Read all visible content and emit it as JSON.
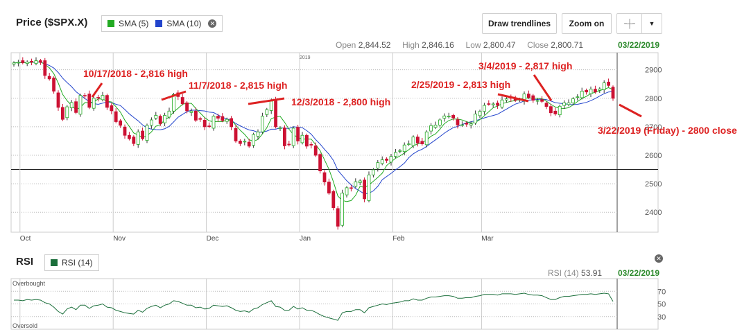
{
  "price_panel": {
    "title": "Price ($SPX.X)",
    "legend": [
      {
        "label": "SMA (5)",
        "color": "#22aa22"
      },
      {
        "label": "SMA (10)",
        "color": "#2244cc"
      }
    ],
    "buttons": {
      "draw_trendlines": "Draw trendlines",
      "zoom_on": "Zoom on"
    },
    "ohlc": {
      "open_label": "Open",
      "open": "2,844.52",
      "high_label": "High",
      "high": "2,846.16",
      "low_label": "Low",
      "low": "2,800.47",
      "close_label": "Close",
      "close": "2,800.71"
    },
    "date": "03/22/2019",
    "year_marker": "2019"
  },
  "rsi_panel": {
    "title": "RSI",
    "legend_label": "RSI (14)",
    "legend_color": "#1a6e3a",
    "value_label": "RSI (14)",
    "value": "53.91",
    "date": "03/22/2019",
    "overbought": "Overbought",
    "oversold": "Oversold"
  },
  "colors": {
    "up": "#22aa22",
    "down": "#cc1133",
    "sma5": "#22aa22",
    "sma10": "#2244cc",
    "annotation": "#dd2222",
    "rsi": "#1a6e3a"
  },
  "chart_data": [
    {
      "type": "candlestick",
      "title": "Price ($SPX.X)",
      "x_labels": [
        "Oct",
        "Nov",
        "Dec",
        "Jan",
        "Feb",
        "Mar"
      ],
      "y_ticks": [
        2400,
        2500,
        2600,
        2700,
        2800,
        2900
      ],
      "ylim": [
        2330,
        2960
      ],
      "reference_line": 2550,
      "series": [
        {
          "name": "SMA (5)"
        },
        {
          "name": "SMA (10)"
        }
      ],
      "closes": [
        2924,
        2926,
        2925,
        2927,
        2928,
        2932,
        2926,
        2880,
        2868,
        2825,
        2768,
        2726,
        2770,
        2785,
        2750,
        2810,
        2809,
        2768,
        2800,
        2801,
        2810,
        2768,
        2756,
        2718,
        2705,
        2670,
        2658,
        2641,
        2682,
        2658,
        2705,
        2724,
        2740,
        2711,
        2740,
        2755,
        2813,
        2806,
        2781,
        2756,
        2755,
        2723,
        2726,
        2700,
        2701,
        2737,
        2730,
        2722,
        2726,
        2700,
        2650,
        2641,
        2649,
        2632,
        2673,
        2682,
        2737,
        2760,
        2790,
        2700,
        2696,
        2633,
        2637,
        2695,
        2650,
        2670,
        2632,
        2636,
        2600,
        2545,
        2506,
        2467,
        2416,
        2351,
        2467,
        2486,
        2485,
        2507,
        2510,
        2447,
        2531,
        2549,
        2574,
        2584,
        2582,
        2596,
        2610,
        2616,
        2636,
        2640,
        2664,
        2643,
        2640,
        2682,
        2704,
        2706,
        2724,
        2738,
        2737,
        2731,
        2706,
        2707,
        2709,
        2710,
        2745,
        2754,
        2775,
        2780,
        2780,
        2775,
        2794,
        2798,
        2800,
        2793,
        2796,
        2815,
        2803,
        2793,
        2792,
        2789,
        2771,
        2749,
        2745,
        2772,
        2784,
        2784,
        2798,
        2805,
        2825,
        2822,
        2832,
        2822,
        2833,
        2854,
        2845,
        2800
      ],
      "annotations": [
        {
          "text": "10/17/2018 - 2,816 high"
        },
        {
          "text": "11/7/2018 - 2,815 high"
        },
        {
          "text": "12/3/2018 - 2,800 high"
        },
        {
          "text": "2/25/2019 - 2,813 high"
        },
        {
          "text": "3/4/2019 - 2,817 high"
        },
        {
          "text": "3/22/2019 (Friday) - 2800 close"
        }
      ]
    },
    {
      "type": "line",
      "title": "RSI",
      "series": [
        {
          "name": "RSI (14)"
        }
      ],
      "y_ticks": [
        30,
        50,
        70
      ],
      "ylim": [
        10,
        90
      ],
      "values": [
        56,
        56,
        55,
        57,
        56,
        57,
        56,
        52,
        50,
        45,
        38,
        34,
        42,
        45,
        41,
        48,
        48,
        43,
        47,
        48,
        50,
        45,
        44,
        40,
        38,
        36,
        35,
        34,
        40,
        37,
        43,
        46,
        48,
        44,
        48,
        50,
        55,
        54,
        51,
        48,
        48,
        44,
        45,
        42,
        43,
        48,
        47,
        46,
        47,
        44,
        40,
        38,
        39,
        37,
        42,
        44,
        49,
        52,
        55,
        46,
        45,
        40,
        40,
        46,
        42,
        44,
        40,
        40,
        37,
        33,
        30,
        28,
        26,
        24,
        36,
        38,
        38,
        41,
        41,
        36,
        44,
        46,
        48,
        50,
        49,
        51,
        52,
        53,
        55,
        55,
        58,
        56,
        56,
        59,
        61,
        61,
        62,
        63,
        63,
        62,
        59,
        59,
        60,
        60,
        62,
        63,
        65,
        65,
        65,
        64,
        66,
        66,
        66,
        65,
        66,
        67,
        65,
        64,
        64,
        63,
        60,
        57,
        57,
        60,
        62,
        62,
        63,
        64,
        65,
        65,
        66,
        65,
        66,
        67,
        66,
        54
      ]
    }
  ]
}
